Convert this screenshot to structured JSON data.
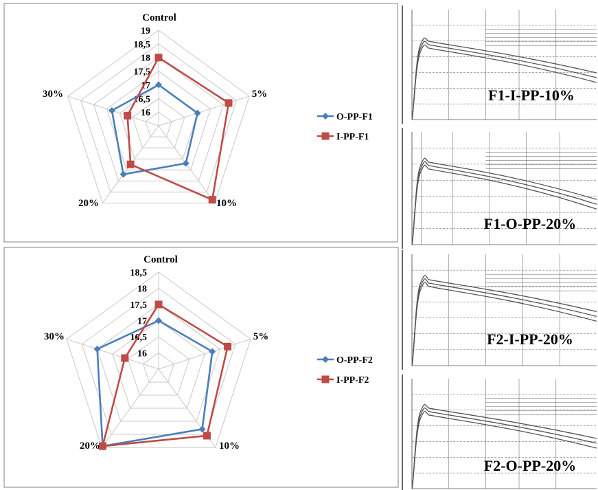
{
  "chart_data": [
    {
      "type": "radar",
      "axes": [
        "Control",
        "5%",
        "10%",
        "20%",
        "30%"
      ],
      "ticks": [
        "16",
        "16,5",
        "17",
        "17,5",
        "18",
        "18,5",
        "19"
      ],
      "rlim": [
        15.5,
        19
      ],
      "grid": true,
      "legend": "right",
      "series": [
        {
          "name": "O-PP-F1",
          "color": "#4a7ebb",
          "marker": "diamond",
          "values": [
            17.0,
            17.0,
            17.2,
            17.7,
            17.3
          ]
        },
        {
          "name": "I-PP-F1",
          "color": "#be4b48",
          "marker": "square",
          "values": [
            18.0,
            18.2,
            18.85,
            17.25,
            16.7
          ]
        }
      ]
    },
    {
      "type": "radar",
      "axes": [
        "Control",
        "5%",
        "10%",
        "20%",
        "30%"
      ],
      "ticks": [
        "16",
        "16,5",
        "17",
        "17,5",
        "18",
        "18,5"
      ],
      "rlim": [
        15.5,
        18.5
      ],
      "grid": true,
      "legend": "right",
      "series": [
        {
          "name": "O-PP-F2",
          "color": "#4a7ebb",
          "marker": "diamond",
          "values": [
            17.0,
            17.25,
            17.8,
            18.45,
            17.5
          ]
        },
        {
          "name": "I-PP-F2",
          "color": "#be4b48",
          "marker": "square",
          "values": [
            17.5,
            17.75,
            18.05,
            18.45,
            16.6
          ]
        }
      ]
    }
  ],
  "curve_panels": [
    {
      "label": "F1-I-PP-10%"
    },
    {
      "label": "F1-O-PP-20%"
    },
    {
      "label": "F2-I-PP-20%"
    },
    {
      "label": "F2-O-PP-20%"
    }
  ]
}
